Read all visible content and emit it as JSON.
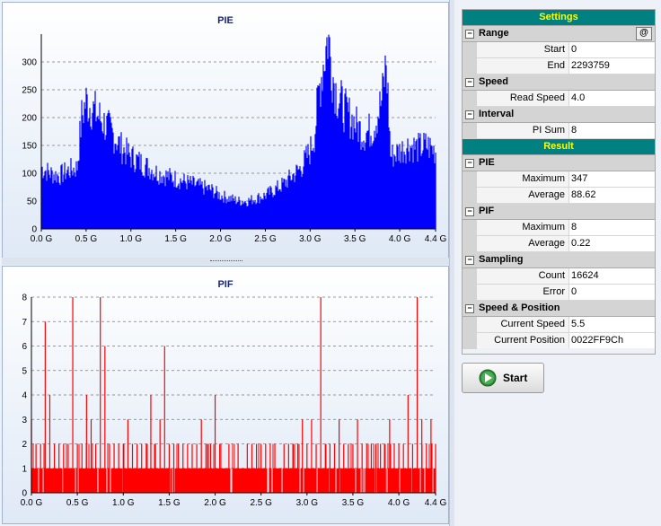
{
  "charts": {
    "pie": {
      "title": "PIE",
      "y_ticks": [
        "0",
        "50",
        "100",
        "150",
        "200",
        "250",
        "300"
      ],
      "x_ticks": [
        "0.0 G",
        "0.5 G",
        "1.0 G",
        "1.5 G",
        "2.0 G",
        "2.5 G",
        "3.0 G",
        "3.5 G",
        "4.0 G",
        "4.4 G"
      ]
    },
    "pif": {
      "title": "PIF",
      "y_ticks": [
        "0",
        "1",
        "2",
        "3",
        "4",
        "5",
        "6",
        "7",
        "8"
      ],
      "x_ticks": [
        "0.0 G",
        "0.5 G",
        "1.0 G",
        "1.5 G",
        "2.0 G",
        "2.5 G",
        "3.0 G",
        "3.5 G",
        "4.0 G",
        "4.4 G"
      ]
    }
  },
  "chart_data": [
    {
      "type": "area",
      "title": "PIE",
      "xlabel": "",
      "ylabel": "",
      "xlim": [
        0,
        4.4
      ],
      "ylim": [
        0,
        350
      ],
      "color": "#0000ff",
      "grid": true,
      "x": [
        0.0,
        0.1,
        0.2,
        0.3,
        0.4,
        0.45,
        0.5,
        0.6,
        0.7,
        0.8,
        0.9,
        1.0,
        1.1,
        1.2,
        1.3,
        1.4,
        1.5,
        1.6,
        1.7,
        1.8,
        1.9,
        2.0,
        2.1,
        2.2,
        2.3,
        2.4,
        2.5,
        2.6,
        2.7,
        2.8,
        2.9,
        3.0,
        3.05,
        3.1,
        3.15,
        3.2,
        3.25,
        3.3,
        3.4,
        3.5,
        3.6,
        3.7,
        3.8,
        3.85,
        3.9,
        4.0,
        4.1,
        4.2,
        4.3,
        4.4
      ],
      "values": [
        110,
        100,
        95,
        105,
        110,
        200,
        230,
        210,
        190,
        170,
        145,
        130,
        120,
        110,
        100,
        95,
        90,
        85,
        80,
        75,
        70,
        60,
        55,
        50,
        50,
        55,
        60,
        70,
        80,
        95,
        110,
        140,
        170,
        250,
        300,
        347,
        280,
        240,
        210,
        190,
        170,
        180,
        230,
        300,
        130,
        140,
        150,
        145,
        150,
        140
      ]
    },
    {
      "type": "bar",
      "title": "PIF",
      "xlabel": "",
      "ylabel": "",
      "xlim": [
        0,
        4.4
      ],
      "ylim": [
        0,
        8
      ],
      "color": "#ff0000",
      "grid": true,
      "x": [
        0.0,
        0.05,
        0.1,
        0.15,
        0.2,
        0.25,
        0.3,
        0.35,
        0.4,
        0.45,
        0.5,
        0.55,
        0.6,
        0.65,
        0.7,
        0.75,
        0.8,
        0.85,
        0.9,
        0.95,
        1.0,
        1.05,
        1.1,
        1.15,
        1.2,
        1.25,
        1.3,
        1.35,
        1.4,
        1.45,
        1.5,
        1.55,
        1.6,
        1.65,
        1.7,
        1.75,
        1.8,
        1.85,
        1.9,
        1.95,
        2.0,
        2.05,
        2.1,
        2.15,
        2.2,
        2.25,
        2.3,
        2.35,
        2.4,
        2.45,
        2.5,
        2.55,
        2.6,
        2.65,
        2.7,
        2.75,
        2.8,
        2.85,
        2.9,
        2.95,
        3.0,
        3.05,
        3.1,
        3.15,
        3.2,
        3.25,
        3.3,
        3.35,
        3.4,
        3.45,
        3.5,
        3.55,
        3.6,
        3.65,
        3.7,
        3.75,
        3.8,
        3.85,
        3.9,
        3.95,
        4.0,
        4.05,
        4.1,
        4.15,
        4.2,
        4.25,
        4.3,
        4.35,
        4.4
      ],
      "values": [
        3,
        2,
        2,
        7,
        4,
        2,
        2,
        2,
        2,
        8,
        2,
        2,
        4,
        3,
        2,
        8,
        6,
        2,
        2,
        2,
        2,
        3,
        2,
        2,
        2,
        2,
        4,
        2,
        3,
        6,
        2,
        2,
        2,
        2,
        2,
        2,
        2,
        3,
        2,
        2,
        4,
        2,
        1,
        2,
        1,
        2,
        1,
        2,
        2,
        2,
        2,
        2,
        2,
        2,
        1,
        2,
        2,
        2,
        2,
        3,
        2,
        3,
        2,
        8,
        2,
        2,
        2,
        3,
        2,
        2,
        2,
        3,
        2,
        2,
        2,
        2,
        2,
        2,
        3,
        2,
        2,
        2,
        4,
        2,
        8,
        3,
        2,
        3,
        2
      ]
    }
  ],
  "settings": {
    "header": "Settings",
    "range": {
      "label": "Range",
      "at_button": "@",
      "start_label": "Start",
      "start_value": "0",
      "end_label": "End",
      "end_value": "2293759"
    },
    "speed": {
      "label": "Speed",
      "read_speed_label": "Read Speed",
      "read_speed_value": "4.0"
    },
    "interval": {
      "label": "Interval",
      "pi_sum_label": "PI Sum",
      "pi_sum_value": "8"
    }
  },
  "result": {
    "header": "Result",
    "pie": {
      "label": "PIE",
      "maximum_label": "Maximum",
      "maximum_value": "347",
      "average_label": "Average",
      "average_value": "88.62"
    },
    "pif": {
      "label": "PIF",
      "maximum_label": "Maximum",
      "maximum_value": "8",
      "average_label": "Average",
      "average_value": "0.22"
    },
    "sampling": {
      "label": "Sampling",
      "count_label": "Count",
      "count_value": "16624",
      "error_label": "Error",
      "error_value": "0"
    },
    "speed_position": {
      "label": "Speed & Position",
      "current_speed_label": "Current Speed",
      "current_speed_value": "5.5",
      "current_position_label": "Current Position",
      "current_position_value": "0022FF9Ch"
    }
  },
  "toggle_symbol": "−",
  "start_button": {
    "label": "Start",
    "icon": "play-icon"
  }
}
